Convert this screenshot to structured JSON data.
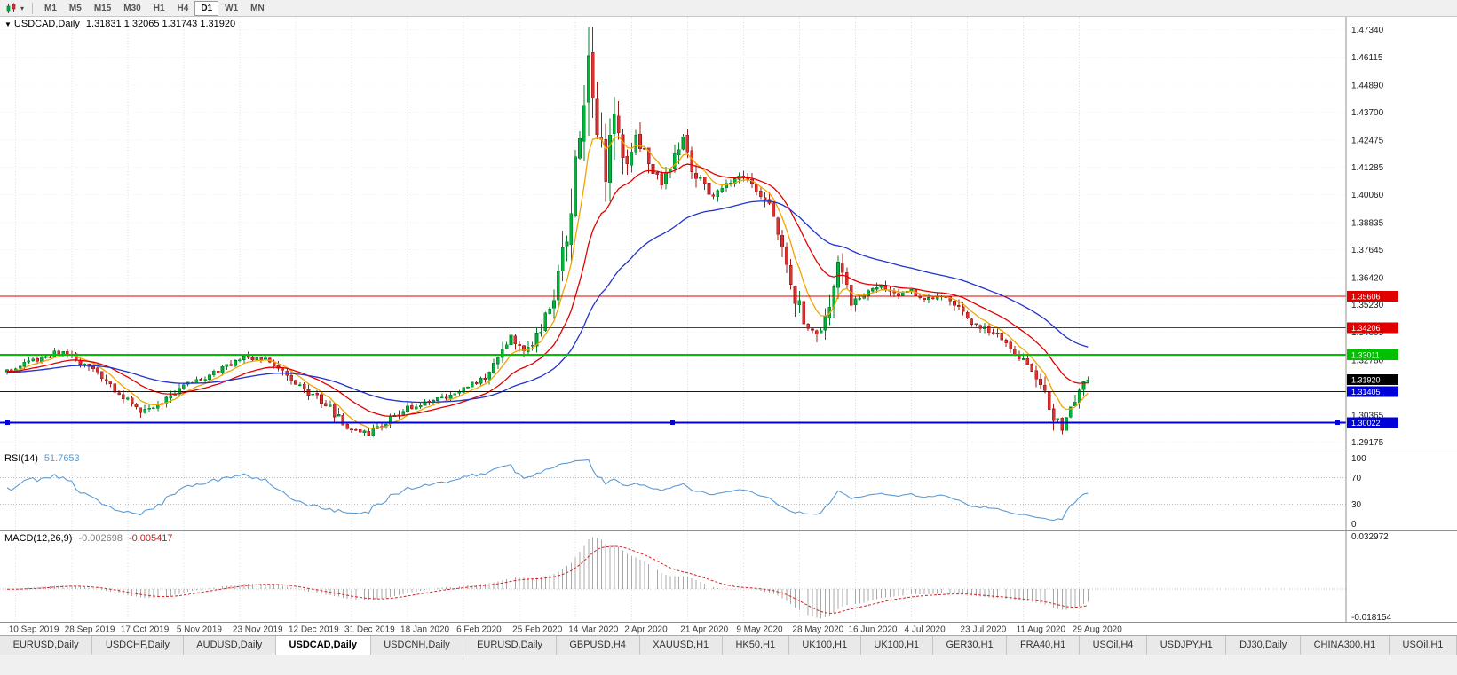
{
  "toolbar": {
    "timeframes": [
      "M1",
      "M5",
      "M15",
      "M30",
      "H1",
      "H4",
      "D1",
      "W1",
      "MN"
    ],
    "active_timeframe": "D1",
    "chart_type_icon": "candlestick-chart-icon"
  },
  "chart": {
    "title": "USDCAD,Daily",
    "ohlc": "1.31831 1.32065 1.31743 1.31920",
    "price_axis": [
      "1.47340",
      "1.46115",
      "1.44890",
      "1.43700",
      "1.42475",
      "1.41285",
      "1.40060",
      "1.38835",
      "1.37645",
      "1.36420",
      "1.35230",
      "1.34005",
      "1.32780",
      "1.30365",
      "1.29175"
    ],
    "hlines": [
      {
        "label": "1.35606",
        "price": 1.35606,
        "color": "#e00000",
        "width": 1,
        "selected": false
      },
      {
        "label": "1.34206",
        "price": 1.34206,
        "color": "#e00000",
        "width": 1,
        "selected": false
      },
      {
        "label": "1.33011",
        "price": 1.33011,
        "color": "#00c000",
        "width": 2,
        "selected": false
      },
      {
        "label": "1.31405",
        "price": 1.31405,
        "color": "#0000d8",
        "width": 1,
        "selected": false
      },
      {
        "label": "1.30022",
        "price": 1.30022,
        "color": "#0000d8",
        "width": 2,
        "selected": true
      }
    ],
    "current_price_badge": {
      "label": "1.31920",
      "price": 1.3192,
      "color": "#000000"
    }
  },
  "rsi": {
    "label": "RSI(14)",
    "value": "51.7653",
    "levels": [
      {
        "label": "100",
        "value": 100
      },
      {
        "label": "70",
        "value": 70
      },
      {
        "label": "30",
        "value": 30
      },
      {
        "label": "0",
        "value": 0
      }
    ]
  },
  "macd": {
    "label": "MACD(12,26,9)",
    "value_main": "-0.002698",
    "value_signal": "-0.005417",
    "axis": [
      {
        "label": "0.032972",
        "value": 0.032972
      },
      {
        "label": "-0.018154",
        "value": -0.018154
      }
    ]
  },
  "time_axis": [
    "10 Sep 2019",
    "28 Sep 2019",
    "17 Oct 2019",
    "5 Nov 2019",
    "23 Nov 2019",
    "12 Dec 2019",
    "31 Dec 2019",
    "18 Jan 2020",
    "6 Feb 2020",
    "25 Feb 2020",
    "14 Mar 2020",
    "2 Apr 2020",
    "21 Apr 2020",
    "9 May 2020",
    "28 May 2020",
    "16 Jun 2020",
    "4 Jul 2020",
    "23 Jul 2020",
    "11 Aug 2020",
    "29 Aug 2020"
  ],
  "tabs": [
    "EURUSD,Daily",
    "USDCHF,Daily",
    "AUDUSD,Daily",
    "USDCAD,Daily",
    "USDCNH,Daily",
    "EURUSD,Daily",
    "GBPUSD,H4",
    "XAUUSD,H1",
    "HK50,H1",
    "UK100,H1",
    "UK100,H1",
    "GER30,H1",
    "FRA40,H1",
    "USOil,H4",
    "USDJPY,H1",
    "DJ30,Daily",
    "CHINA300,H1",
    "USOil,H1"
  ],
  "active_tab_index": 3,
  "colors": {
    "bull_fill": "#00b43c",
    "bull_stroke": "#00802a",
    "bear_fill": "#e03030",
    "bear_stroke": "#9e1c1c",
    "ma_fast": "#f0a500",
    "ma_mid": "#e00000",
    "ma_slow": "#2233cc",
    "rsi_line": "#5b9bd5",
    "macd_hist": "#a8a8a8",
    "macd_signal": "#d42424",
    "grid": "#dfdfdf",
    "axis_text": "#1a1a1a",
    "panel_border": "#909090"
  },
  "chart_data": {
    "type": "candlestick",
    "symbol": "USDCAD",
    "timeframe": "Daily",
    "bars": 252,
    "warmup_bars": 40,
    "seed": 11,
    "displayed_ohlc": {
      "open": 1.31831,
      "high": 1.32065,
      "low": 1.31743,
      "close": 1.3192
    },
    "prev_close": 1.3183,
    "spike_high": 1.4674,
    "ylim": [
      1.288,
      1.479
    ],
    "price_path_anchors": [
      [
        -40,
        1.3205
      ],
      [
        -20,
        1.3255
      ],
      [
        -8,
        1.3215
      ],
      [
        0,
        1.323
      ],
      [
        5,
        1.327
      ],
      [
        12,
        1.3315
      ],
      [
        15,
        1.3295
      ],
      [
        20,
        1.3235
      ],
      [
        26,
        1.3135
      ],
      [
        31,
        1.3045
      ],
      [
        36,
        1.309
      ],
      [
        41,
        1.316
      ],
      [
        48,
        1.322
      ],
      [
        55,
        1.329
      ],
      [
        60,
        1.3285
      ],
      [
        64,
        1.323
      ],
      [
        68,
        1.316
      ],
      [
        74,
        1.309
      ],
      [
        79,
        1.2975
      ],
      [
        84,
        1.2958
      ],
      [
        89,
        1.302
      ],
      [
        93,
        1.307
      ],
      [
        100,
        1.3105
      ],
      [
        106,
        1.315
      ],
      [
        112,
        1.3215
      ],
      [
        117,
        1.339
      ],
      [
        120,
        1.331
      ],
      [
        124,
        1.342
      ],
      [
        127,
        1.355
      ],
      [
        130,
        1.382
      ],
      [
        133,
        1.425
      ],
      [
        135,
        1.46
      ],
      [
        137,
        1.428
      ],
      [
        139,
        1.413
      ],
      [
        141,
        1.444
      ],
      [
        143,
        1.412
      ],
      [
        146,
        1.428
      ],
      [
        149,
        1.414
      ],
      [
        152,
        1.406
      ],
      [
        155,
        1.417
      ],
      [
        157,
        1.424
      ],
      [
        160,
        1.408
      ],
      [
        164,
        1.4
      ],
      [
        168,
        1.406
      ],
      [
        171,
        1.409
      ],
      [
        174,
        1.403
      ],
      [
        177,
        1.395
      ],
      [
        180,
        1.378
      ],
      [
        183,
        1.356
      ],
      [
        186,
        1.342
      ],
      [
        189,
        1.339
      ],
      [
        193,
        1.368
      ],
      [
        196,
        1.354
      ],
      [
        199,
        1.356
      ],
      [
        203,
        1.362
      ],
      [
        206,
        1.356
      ],
      [
        210,
        1.358
      ],
      [
        214,
        1.3545
      ],
      [
        218,
        1.3565
      ],
      [
        222,
        1.348
      ],
      [
        226,
        1.342
      ],
      [
        230,
        1.339
      ],
      [
        234,
        1.331
      ],
      [
        237,
        1.3255
      ],
      [
        240,
        1.318
      ],
      [
        243,
        1.301
      ],
      [
        245,
        1.299
      ],
      [
        247,
        1.306
      ],
      [
        249,
        1.313
      ],
      [
        251,
        1.3192
      ]
    ],
    "moving_averages": [
      {
        "name": "ma-fast",
        "period": 7,
        "color_key": "ma_fast"
      },
      {
        "name": "ma-mid",
        "period": 20,
        "color_key": "ma_mid"
      },
      {
        "name": "ma-slow",
        "period": 50,
        "color_key": "ma_slow"
      }
    ],
    "indicators": {
      "rsi_period": 14,
      "macd": [
        12,
        26,
        9
      ]
    },
    "time_tick_first_bar": 2,
    "time_tick_step_bars": 13
  }
}
